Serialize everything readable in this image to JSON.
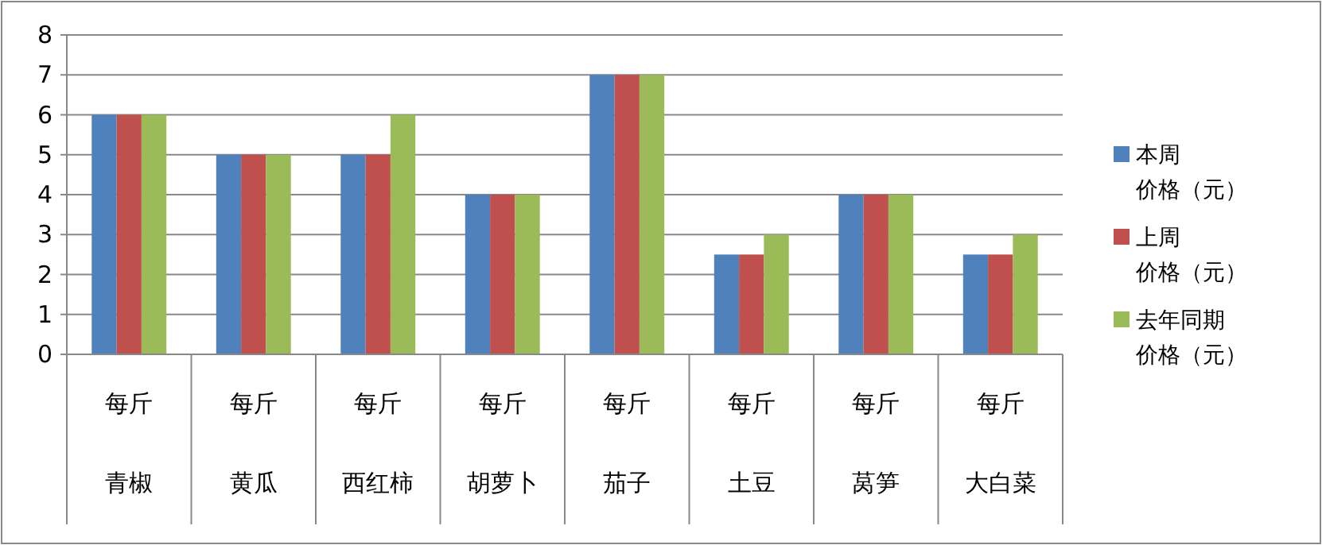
{
  "chart_data": {
    "type": "bar",
    "categories": [
      "每斤青椒",
      "每斤黄瓜",
      "每斤西红柿",
      "每斤胡萝卜",
      "每斤茄子",
      "每斤土豆",
      "每斤莴笋",
      "每斤大白菜"
    ],
    "series": [
      {
        "name": "本周价格（元）",
        "color": "#4f81bd",
        "values": [
          6,
          5,
          5,
          4,
          7,
          2.5,
          4,
          2.5
        ]
      },
      {
        "name": "上周价格（元）",
        "color": "#c0504d",
        "values": [
          6,
          5,
          5,
          4,
          7,
          2.5,
          4,
          2.5
        ]
      },
      {
        "name": "去年同期价格（元）",
        "color": "#9bbb59",
        "values": [
          6,
          5,
          6,
          4,
          7,
          3,
          4,
          3
        ]
      }
    ],
    "ylim": [
      0,
      8
    ],
    "yticks": [
      0,
      1,
      2,
      3,
      4,
      5,
      6,
      7,
      8
    ],
    "grid": "y",
    "legend": "right"
  }
}
